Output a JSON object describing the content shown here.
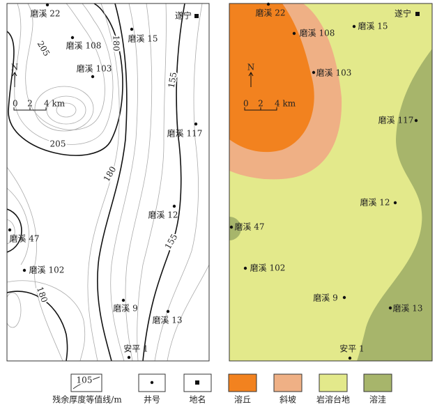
{
  "north": "N",
  "scale": [
    "0",
    "2",
    "4 km"
  ],
  "place": "遂宁",
  "wells": [
    "磨溪 22",
    "磨溪 108",
    "磨溪 15",
    "磨溪 103",
    "磨溪 117",
    "磨溪 12",
    "磨溪 47",
    "磨溪 102",
    "磨溪 9",
    "磨溪 13",
    "安平 1"
  ],
  "contour_labels": [
    205,
    205,
    180,
    180,
    180,
    155,
    155
  ],
  "legend": {
    "contour_sample": 105,
    "items": [
      "残余厚度等值线/m",
      "井号",
      "地名",
      "溶丘",
      "斜坡",
      "岩溶台地",
      "溶洼"
    ]
  }
}
